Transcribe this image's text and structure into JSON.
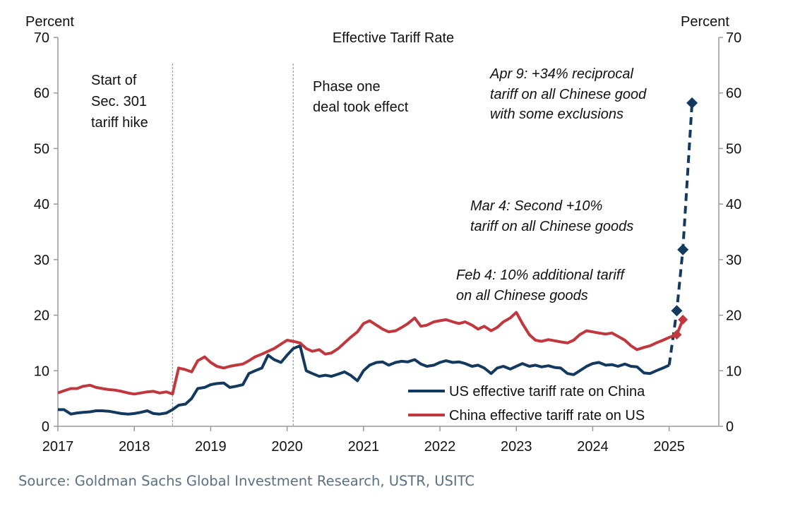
{
  "chart_data": {
    "type": "line",
    "title": "Effective Tariff Rate",
    "ylabel_left": "Percent",
    "ylabel_right": "Percent",
    "ylim": [
      0,
      70
    ],
    "yticks": [
      0,
      10,
      20,
      30,
      40,
      50,
      60,
      70
    ],
    "xlim": [
      2017,
      2025.65
    ],
    "xticks": [
      2017,
      2018,
      2019,
      2020,
      2021,
      2022,
      2023,
      2024,
      2025
    ],
    "series": [
      {
        "name": "US effective tariff rate on China",
        "color": "#133a5e",
        "points": [
          [
            2017.0,
            3.0
          ],
          [
            2017.08,
            3.0
          ],
          [
            2017.17,
            2.2
          ],
          [
            2017.25,
            2.4
          ],
          [
            2017.33,
            2.5
          ],
          [
            2017.42,
            2.6
          ],
          [
            2017.5,
            2.8
          ],
          [
            2017.58,
            2.8
          ],
          [
            2017.67,
            2.7
          ],
          [
            2017.75,
            2.5
          ],
          [
            2017.83,
            2.3
          ],
          [
            2017.92,
            2.2
          ],
          [
            2018.0,
            2.3
          ],
          [
            2018.08,
            2.5
          ],
          [
            2018.17,
            2.8
          ],
          [
            2018.25,
            2.3
          ],
          [
            2018.33,
            2.2
          ],
          [
            2018.42,
            2.4
          ],
          [
            2018.5,
            3.0
          ],
          [
            2018.58,
            3.8
          ],
          [
            2018.67,
            4.0
          ],
          [
            2018.75,
            5.0
          ],
          [
            2018.83,
            6.8
          ],
          [
            2018.92,
            7.0
          ],
          [
            2019.0,
            7.5
          ],
          [
            2019.08,
            7.7
          ],
          [
            2019.17,
            7.8
          ],
          [
            2019.25,
            7.0
          ],
          [
            2019.33,
            7.2
          ],
          [
            2019.42,
            7.5
          ],
          [
            2019.5,
            9.5
          ],
          [
            2019.58,
            10.0
          ],
          [
            2019.67,
            10.5
          ],
          [
            2019.75,
            12.8
          ],
          [
            2019.83,
            12.0
          ],
          [
            2019.92,
            11.5
          ],
          [
            2020.0,
            12.8
          ],
          [
            2020.08,
            14.0
          ],
          [
            2020.17,
            14.5
          ],
          [
            2020.25,
            10.0
          ],
          [
            2020.33,
            9.5
          ],
          [
            2020.42,
            9.0
          ],
          [
            2020.5,
            9.2
          ],
          [
            2020.58,
            9.0
          ],
          [
            2020.67,
            9.4
          ],
          [
            2020.75,
            9.8
          ],
          [
            2020.83,
            9.2
          ],
          [
            2020.92,
            8.2
          ],
          [
            2021.0,
            10.0
          ],
          [
            2021.08,
            11.0
          ],
          [
            2021.17,
            11.5
          ],
          [
            2021.25,
            11.6
          ],
          [
            2021.33,
            11.0
          ],
          [
            2021.42,
            11.5
          ],
          [
            2021.5,
            11.7
          ],
          [
            2021.58,
            11.6
          ],
          [
            2021.67,
            12.0
          ],
          [
            2021.75,
            11.2
          ],
          [
            2021.83,
            10.8
          ],
          [
            2021.92,
            11.0
          ],
          [
            2022.0,
            11.5
          ],
          [
            2022.08,
            11.8
          ],
          [
            2022.17,
            11.5
          ],
          [
            2022.25,
            11.6
          ],
          [
            2022.33,
            11.3
          ],
          [
            2022.42,
            10.8
          ],
          [
            2022.5,
            11.0
          ],
          [
            2022.58,
            10.5
          ],
          [
            2022.67,
            9.5
          ],
          [
            2022.75,
            10.5
          ],
          [
            2022.83,
            10.8
          ],
          [
            2022.92,
            10.3
          ],
          [
            2023.0,
            10.8
          ],
          [
            2023.08,
            11.3
          ],
          [
            2023.17,
            10.8
          ],
          [
            2023.25,
            11.0
          ],
          [
            2023.33,
            10.7
          ],
          [
            2023.42,
            10.9
          ],
          [
            2023.5,
            10.6
          ],
          [
            2023.58,
            10.5
          ],
          [
            2023.67,
            9.5
          ],
          [
            2023.75,
            9.3
          ],
          [
            2023.83,
            10.0
          ],
          [
            2023.92,
            10.8
          ],
          [
            2024.0,
            11.3
          ],
          [
            2024.08,
            11.5
          ],
          [
            2024.17,
            11.0
          ],
          [
            2024.25,
            11.1
          ],
          [
            2024.33,
            10.8
          ],
          [
            2024.42,
            11.2
          ],
          [
            2024.5,
            10.8
          ],
          [
            2024.58,
            10.7
          ],
          [
            2024.67,
            9.6
          ],
          [
            2024.75,
            9.5
          ],
          [
            2024.83,
            10.0
          ],
          [
            2024.92,
            10.5
          ],
          [
            2025.0,
            11.0
          ]
        ],
        "projected_points": [
          [
            2025.0,
            11.0
          ],
          [
            2025.1,
            20.8
          ],
          [
            2025.18,
            31.8
          ],
          [
            2025.3,
            58.2
          ]
        ],
        "markers": [
          [
            2025.1,
            20.8
          ],
          [
            2025.18,
            31.8
          ],
          [
            2025.3,
            58.2
          ]
        ]
      },
      {
        "name": "China effective tariff rate on US",
        "color": "#c0373d",
        "points": [
          [
            2017.0,
            6.0
          ],
          [
            2017.08,
            6.4
          ],
          [
            2017.17,
            6.8
          ],
          [
            2017.25,
            6.8
          ],
          [
            2017.33,
            7.2
          ],
          [
            2017.42,
            7.4
          ],
          [
            2017.5,
            7.0
          ],
          [
            2017.58,
            6.8
          ],
          [
            2017.67,
            6.6
          ],
          [
            2017.75,
            6.5
          ],
          [
            2017.83,
            6.3
          ],
          [
            2017.92,
            6.0
          ],
          [
            2018.0,
            5.8
          ],
          [
            2018.08,
            6.0
          ],
          [
            2018.17,
            6.2
          ],
          [
            2018.25,
            6.3
          ],
          [
            2018.33,
            6.0
          ],
          [
            2018.42,
            6.2
          ],
          [
            2018.5,
            5.8
          ],
          [
            2018.58,
            10.5
          ],
          [
            2018.67,
            10.2
          ],
          [
            2018.75,
            9.8
          ],
          [
            2018.83,
            11.8
          ],
          [
            2018.92,
            12.5
          ],
          [
            2019.0,
            11.5
          ],
          [
            2019.08,
            10.8
          ],
          [
            2019.17,
            10.5
          ],
          [
            2019.25,
            10.8
          ],
          [
            2019.33,
            11.0
          ],
          [
            2019.42,
            11.2
          ],
          [
            2019.5,
            11.8
          ],
          [
            2019.58,
            12.5
          ],
          [
            2019.67,
            13.0
          ],
          [
            2019.75,
            13.5
          ],
          [
            2019.83,
            14.0
          ],
          [
            2019.92,
            14.8
          ],
          [
            2020.0,
            15.5
          ],
          [
            2020.08,
            15.3
          ],
          [
            2020.17,
            15.0
          ],
          [
            2020.25,
            14.0
          ],
          [
            2020.33,
            13.5
          ],
          [
            2020.42,
            13.8
          ],
          [
            2020.5,
            13.0
          ],
          [
            2020.58,
            13.2
          ],
          [
            2020.67,
            14.0
          ],
          [
            2020.75,
            15.0
          ],
          [
            2020.83,
            16.0
          ],
          [
            2020.92,
            17.0
          ],
          [
            2021.0,
            18.5
          ],
          [
            2021.08,
            19.0
          ],
          [
            2021.17,
            18.2
          ],
          [
            2021.25,
            17.5
          ],
          [
            2021.33,
            17.0
          ],
          [
            2021.42,
            17.2
          ],
          [
            2021.5,
            17.8
          ],
          [
            2021.58,
            18.5
          ],
          [
            2021.67,
            19.5
          ],
          [
            2021.75,
            18.0
          ],
          [
            2021.83,
            18.2
          ],
          [
            2021.92,
            18.8
          ],
          [
            2022.0,
            19.0
          ],
          [
            2022.08,
            19.2
          ],
          [
            2022.17,
            18.8
          ],
          [
            2022.25,
            18.5
          ],
          [
            2022.33,
            18.8
          ],
          [
            2022.42,
            18.2
          ],
          [
            2022.5,
            17.5
          ],
          [
            2022.58,
            18.0
          ],
          [
            2022.67,
            17.2
          ],
          [
            2022.75,
            17.8
          ],
          [
            2022.83,
            18.8
          ],
          [
            2022.92,
            19.5
          ],
          [
            2023.0,
            20.5
          ],
          [
            2023.08,
            18.5
          ],
          [
            2023.17,
            16.5
          ],
          [
            2023.25,
            15.5
          ],
          [
            2023.33,
            15.3
          ],
          [
            2023.42,
            15.6
          ],
          [
            2023.5,
            15.4
          ],
          [
            2023.58,
            15.2
          ],
          [
            2023.67,
            15.0
          ],
          [
            2023.75,
            15.5
          ],
          [
            2023.83,
            16.5
          ],
          [
            2023.92,
            17.2
          ],
          [
            2024.0,
            17.0
          ],
          [
            2024.08,
            16.8
          ],
          [
            2024.17,
            16.6
          ],
          [
            2024.25,
            16.8
          ],
          [
            2024.33,
            16.2
          ],
          [
            2024.42,
            15.5
          ],
          [
            2024.5,
            14.5
          ],
          [
            2024.58,
            13.8
          ],
          [
            2024.67,
            14.2
          ],
          [
            2024.75,
            14.5
          ],
          [
            2024.83,
            15.0
          ],
          [
            2024.92,
            15.5
          ],
          [
            2025.0,
            16.0
          ],
          [
            2025.1,
            16.5
          ],
          [
            2025.18,
            19.2
          ]
        ],
        "markers": [
          [
            2025.1,
            16.5
          ],
          [
            2025.18,
            19.2
          ]
        ]
      }
    ],
    "vlines": [
      {
        "x": 2018.5,
        "label": [
          "Start of",
          "Sec. 301",
          "tariff hike"
        ]
      },
      {
        "x": 2020.08,
        "label": [
          "Phase one",
          "deal took effect"
        ]
      }
    ],
    "annotations": [
      {
        "lines": [
          "Apr 9: +34% reciprocal",
          "tariff on all Chinese good",
          "with some exclusions"
        ]
      },
      {
        "lines": [
          "Mar 4: Second +10%",
          "tariff on all Chinese goods"
        ]
      },
      {
        "lines": [
          "Feb 4: 10% additional tariff",
          "on all Chinese goods"
        ]
      }
    ],
    "legend_position": "bottom-right"
  },
  "source": "Source: Goldman Sachs Global Investment Research, USTR, USITC"
}
